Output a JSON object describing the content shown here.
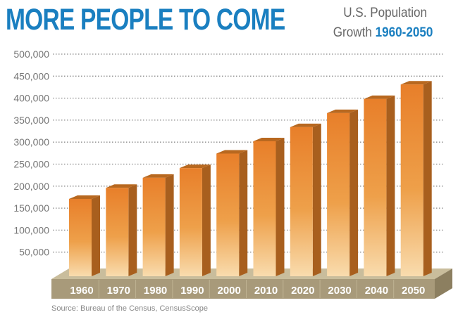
{
  "chart_data": {
    "type": "bar",
    "title": "MORE PEOPLE TO COME",
    "subtitle_line1": "U.S. Population",
    "subtitle_prefix": "Growth",
    "subtitle_range": "1960-2050",
    "categories": [
      "1960",
      "1970",
      "1980",
      "1990",
      "2000",
      "2010",
      "2020",
      "2030",
      "2040",
      "2050"
    ],
    "values": [
      171000,
      196000,
      219000,
      241000,
      274000,
      302000,
      334000,
      366000,
      398000,
      431000
    ],
    "ylim": [
      0,
      500000
    ],
    "yticks": [
      "50,000",
      "100,000",
      "150,000",
      "200,000",
      "250,000",
      "300,000",
      "350,000",
      "400,000",
      "450,000",
      "500,000"
    ],
    "ytick_values": [
      50000,
      100000,
      150000,
      200000,
      250000,
      300000,
      350000,
      400000,
      450000,
      500000
    ],
    "xlabel": "",
    "ylabel": "",
    "grid": true,
    "source": "Source: Bureau of the Census, CensusScope",
    "colors": {
      "title": "#1a7fc0",
      "bar_top": "#e87f2a",
      "bar_bottom": "#f8d9a8",
      "bar_side": "#a85f1e",
      "base": "#a89a7a"
    }
  }
}
